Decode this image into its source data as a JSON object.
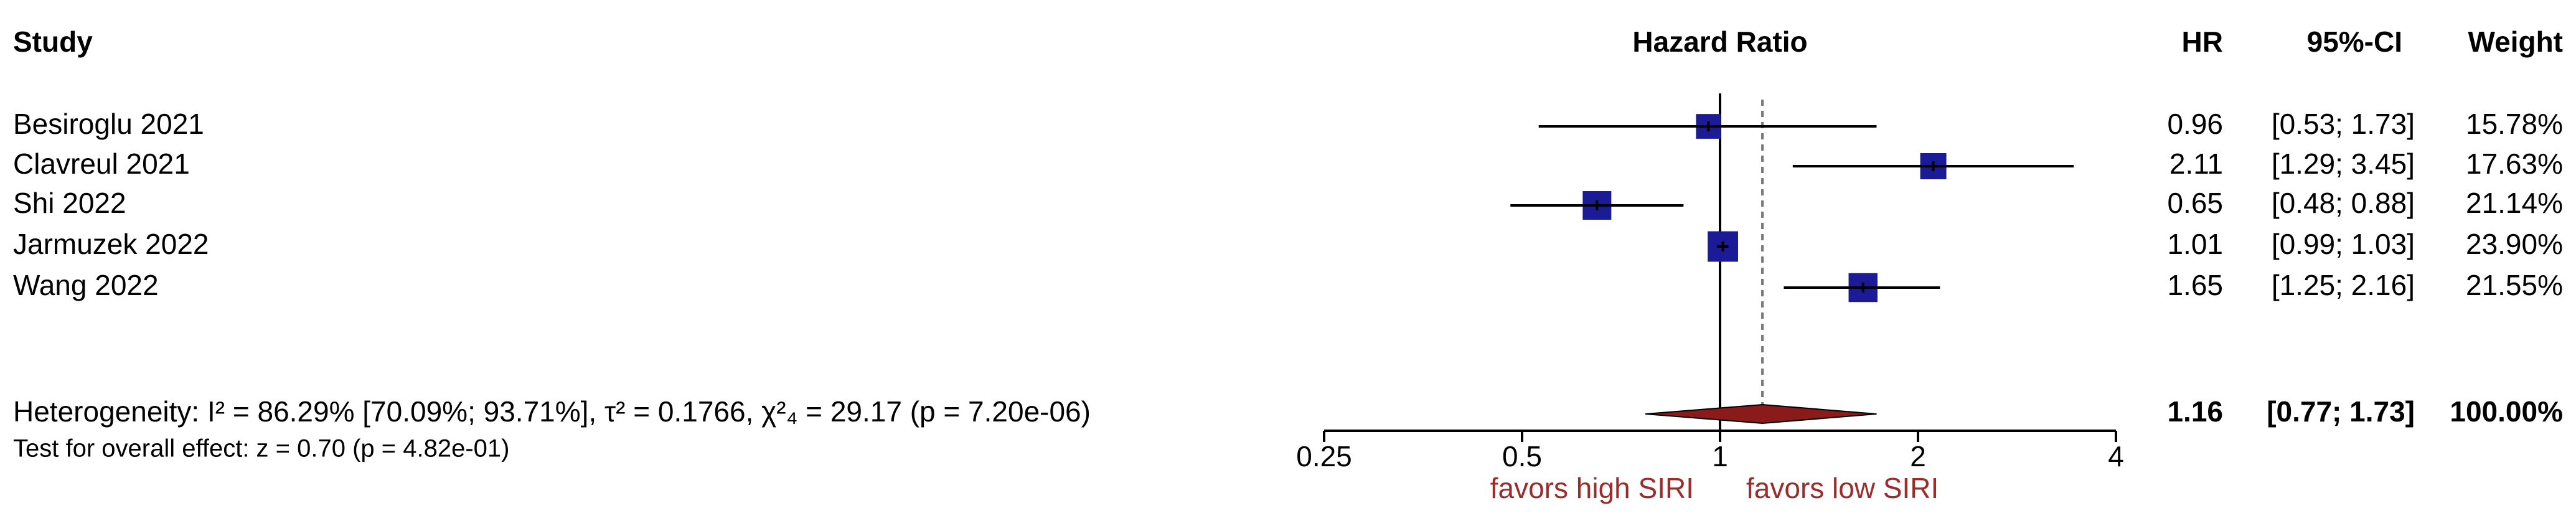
{
  "chart_data": {
    "type": "forest",
    "columns": {
      "study": "Study",
      "plot": "Hazard Ratio",
      "hr": "HR",
      "ci": "95%-CI",
      "weight": "Weight"
    },
    "categories": [
      "Besiroglu 2021",
      "Clavreul 2021",
      "Shi 2022",
      "Jarmuzek 2022",
      "Wang 2022"
    ],
    "values": [
      0.96,
      2.11,
      0.65,
      1.01,
      1.65
    ],
    "lower": [
      0.53,
      1.29,
      0.48,
      0.99,
      1.25
    ],
    "upper": [
      1.73,
      3.45,
      0.88,
      1.03,
      2.16
    ],
    "ci_labels": [
      "[0.53; 1.73]",
      "[1.29; 3.45]",
      "[0.48; 0.88]",
      "[0.99; 1.03]",
      "[1.25; 2.16]"
    ],
    "weights": [
      15.78,
      17.63,
      21.14,
      23.9,
      21.55
    ],
    "weight_labels": [
      "15.78%",
      "17.63%",
      "21.14%",
      "23.90%",
      "21.55%"
    ],
    "overall": {
      "hr": 1.16,
      "lower": 0.77,
      "upper": 1.73,
      "ci_label": "[0.77; 1.73]",
      "weight": 100,
      "weight_label": "100.00%"
    },
    "heterogeneity": "Heterogeneity: I² = 86.29% [70.09%; 93.71%], τ² = 0.1766, χ²₄ = 29.17 (p = 7.20e-06)",
    "overall_test": "Test for overall effect: z = 0.70 (p = 4.82e-01)",
    "favors_left": "favors high SIRI",
    "favors_right": "favors low SIRI",
    "null_line": 1,
    "log_x": true,
    "xlim": [
      0.25,
      4
    ],
    "xticks": [
      0.25,
      0.5,
      1,
      2,
      4
    ],
    "square_color": "#1b1b97",
    "diamond_color": "#8b1a1a",
    "favors_color": "#9b2c2c"
  }
}
